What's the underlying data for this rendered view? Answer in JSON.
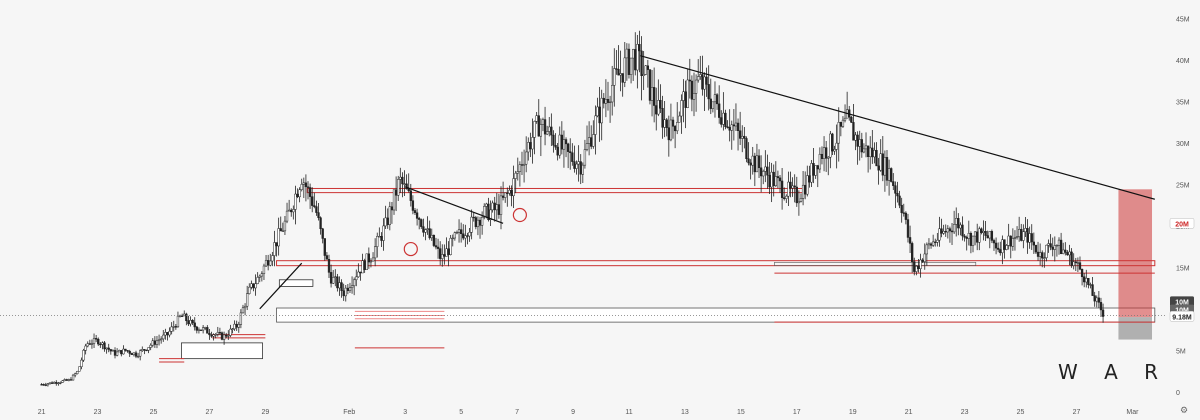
{
  "watermark": "W A R",
  "chart_data": {
    "type": "candlestick",
    "y_unit": "shares",
    "ylim": [
      -500000,
      46000000
    ],
    "y_ticks": [
      {
        "value": 45000000,
        "label": "45M"
      },
      {
        "value": 40000000,
        "label": "40M"
      },
      {
        "value": 35000000,
        "label": "35M"
      },
      {
        "value": 30000000,
        "label": "30M"
      },
      {
        "value": 25000000,
        "label": "25M"
      },
      {
        "value": 20000000,
        "label": "20M"
      },
      {
        "value": 15000000,
        "label": "15M"
      },
      {
        "value": 10000000,
        "label": "10M"
      },
      {
        "value": 5000000,
        "label": "5M"
      },
      {
        "value": 0,
        "label": "0"
      }
    ],
    "x_ticks": [
      {
        "day": 0,
        "label": "21"
      },
      {
        "day": 2,
        "label": "23"
      },
      {
        "day": 4,
        "label": "25"
      },
      {
        "day": 6,
        "label": "27"
      },
      {
        "day": 8,
        "label": "29"
      },
      {
        "day": 11,
        "label": "Feb"
      },
      {
        "day": 13,
        "label": "3"
      },
      {
        "day": 15,
        "label": "5"
      },
      {
        "day": 17,
        "label": "7"
      },
      {
        "day": 19,
        "label": "9"
      },
      {
        "day": 21,
        "label": "11"
      },
      {
        "day": 23,
        "label": "13"
      },
      {
        "day": 25,
        "label": "15"
      },
      {
        "day": 27,
        "label": "17"
      },
      {
        "day": 29,
        "label": "19"
      },
      {
        "day": 31,
        "label": "21"
      },
      {
        "day": 33,
        "label": "23"
      },
      {
        "day": 35,
        "label": "25"
      },
      {
        "day": 37,
        "label": "27"
      },
      {
        "day": 39,
        "label": "Mar"
      }
    ],
    "xlim": [
      -0.2,
      40.2
    ],
    "price_path": [
      [
        0,
        900000
      ],
      [
        1,
        1400000
      ],
      [
        1.3,
        2500000
      ],
      [
        1.6,
        5800000
      ],
      [
        2,
        6200000
      ],
      [
        2.6,
        4600000
      ],
      [
        3,
        5000000
      ],
      [
        3.4,
        4500000
      ],
      [
        4,
        5900000
      ],
      [
        4.5,
        6900000
      ],
      [
        5,
        9200000
      ],
      [
        5.4,
        8000000
      ],
      [
        6,
        7200000
      ],
      [
        6.5,
        6600000
      ],
      [
        7,
        8000000
      ],
      [
        7.4,
        12000000
      ],
      [
        7.8,
        14000000
      ],
      [
        8.3,
        17500000
      ],
      [
        8.8,
        21000000
      ],
      [
        9.3,
        26000000
      ],
      [
        9.8,
        22000000
      ],
      [
        10.3,
        14000000
      ],
      [
        10.8,
        12000000
      ],
      [
        11.3,
        14500000
      ],
      [
        11.8,
        16500000
      ],
      [
        12.3,
        20000000
      ],
      [
        12.8,
        25500000
      ],
      [
        13.3,
        22500000
      ],
      [
        13.8,
        19000000
      ],
      [
        14.3,
        16000000
      ],
      [
        14.8,
        18500000
      ],
      [
        15.3,
        20000000
      ],
      [
        15.8,
        21500000
      ],
      [
        16.3,
        22000000
      ],
      [
        16.8,
        24500000
      ],
      [
        17.3,
        29000000
      ],
      [
        17.8,
        32500000
      ],
      [
        18.3,
        30500000
      ],
      [
        18.8,
        28500000
      ],
      [
        19.3,
        27500000
      ],
      [
        19.8,
        32500000
      ],
      [
        20.3,
        36500000
      ],
      [
        20.8,
        39000000
      ],
      [
        21.2,
        40700000
      ],
      [
        21.6,
        38000000
      ],
      [
        22,
        34000000
      ],
      [
        22.5,
        31500000
      ],
      [
        23,
        35500000
      ],
      [
        23.5,
        37500000
      ],
      [
        24,
        35000000
      ],
      [
        24.5,
        33000000
      ],
      [
        25,
        30500000
      ],
      [
        25.5,
        27500000
      ],
      [
        26,
        26000000
      ],
      [
        26.5,
        24500000
      ],
      [
        27,
        23500000
      ],
      [
        27.4,
        25500000
      ],
      [
        27.8,
        28500000
      ],
      [
        28.3,
        30000000
      ],
      [
        28.8,
        32500000
      ],
      [
        29.3,
        29500000
      ],
      [
        29.8,
        28500000
      ],
      [
        30.3,
        26500000
      ],
      [
        30.8,
        22000000
      ],
      [
        31.2,
        14500000
      ],
      [
        31.7,
        17500000
      ],
      [
        32.2,
        19000000
      ],
      [
        32.7,
        20500000
      ],
      [
        33.2,
        18500000
      ],
      [
        33.7,
        19000000
      ],
      [
        34.2,
        17500000
      ],
      [
        34.7,
        18500000
      ],
      [
        35.2,
        19000000
      ],
      [
        35.7,
        16500000
      ],
      [
        36.2,
        18000000
      ],
      [
        36.7,
        16500000
      ],
      [
        37.2,
        14500000
      ],
      [
        37.6,
        11500000
      ],
      [
        38,
        9200000
      ]
    ],
    "trendlines": [
      {
        "from": [
          7.8,
          10000000
        ],
        "to": [
          9.3,
          15500000
        ],
        "color": "#111111"
      },
      {
        "from": [
          13,
          24700000
        ],
        "to": [
          16.5,
          20300000
        ],
        "color": "#111111"
      },
      {
        "from": [
          21.4,
          40500000
        ],
        "to": [
          39.8,
          23200000
        ],
        "color": "#111111"
      }
    ],
    "zones": [
      {
        "from": [
          9.5,
          24500000
        ],
        "to": [
          27.4,
          24000000
        ],
        "stroke": "#cc3333",
        "fill": "none",
        "width": 1
      },
      {
        "from": [
          8.4,
          15800000
        ],
        "to": [
          39.8,
          15200000
        ],
        "stroke": "#cc3333",
        "fill": "none",
        "width": 1
      },
      {
        "from": [
          8.4,
          10100000
        ],
        "to": [
          39.8,
          8400000
        ],
        "stroke": "#555555",
        "fill": "#ffffff",
        "width": 0.8
      },
      {
        "from": [
          5,
          5900000
        ],
        "to": [
          7.9,
          4000000
        ],
        "stroke": "#333333",
        "fill": "#ffffff",
        "width": 0.8
      },
      {
        "from": [
          8.5,
          13500000
        ],
        "to": [
          9.7,
          12700000
        ],
        "stroke": "#333333",
        "fill": "#ffffff",
        "width": 0.8
      },
      {
        "from": [
          26.2,
          15600000
        ],
        "to": [
          33.4,
          15200000
        ],
        "stroke": "#555555",
        "fill": "none",
        "width": 0.6
      },
      {
        "from": [
          38.5,
          24400000
        ],
        "to": [
          39.7,
          9000000
        ],
        "stroke": "none",
        "fill": "#cc3333",
        "opacity": 0.55
      },
      {
        "from": [
          38.5,
          9000000
        ],
        "to": [
          39.7,
          6300000
        ],
        "stroke": "none",
        "fill": "#777777",
        "opacity": 0.55
      }
    ],
    "levels": [
      {
        "y": 14300000,
        "from": 26.2,
        "to": 39.8,
        "color": "#cc3333"
      },
      {
        "y": 9700000,
        "from": 11.2,
        "to": 14.4,
        "color": "#ee8888"
      },
      {
        "y": 9200000,
        "from": 11.2,
        "to": 14.4,
        "color": "#ee8888"
      },
      {
        "y": 8800000,
        "from": 11.2,
        "to": 14.4,
        "color": "#ee8888"
      },
      {
        "y": 8400000,
        "from": 26.2,
        "to": 39.8,
        "color": "#cc3333"
      },
      {
        "y": 5300000,
        "from": 11.2,
        "to": 14.4,
        "color": "#cc3333"
      },
      {
        "y": 6900000,
        "from": 6.1,
        "to": 8.0,
        "color": "#cc3333"
      },
      {
        "y": 6500000,
        "from": 6.1,
        "to": 8.0,
        "color": "#cc3333"
      },
      {
        "y": 4000000,
        "from": 4.2,
        "to": 5.1,
        "color": "#cc3333"
      },
      {
        "y": 3600000,
        "from": 4.2,
        "to": 5.1,
        "color": "#cc3333"
      }
    ],
    "circles": [
      {
        "x": 13.2,
        "y": 17200000
      },
      {
        "x": 17.1,
        "y": 21300000
      }
    ],
    "dotted_level": {
      "y": 9180000
    },
    "last_price_labels": [
      {
        "y": 10900000,
        "text": "10M",
        "bg": "#444444",
        "fg": "#ffffff"
      },
      {
        "y": 9900000,
        "text": "10M",
        "bg": "#666666",
        "fg": "#ffffff"
      },
      {
        "y": 9100000,
        "text": "9.18M",
        "bg": "#ffffff",
        "fg": "#222222"
      }
    ],
    "level_label": {
      "y": 20300000,
      "text": "20M",
      "bg": "#ffffff",
      "fg": "#cc2222"
    }
  }
}
